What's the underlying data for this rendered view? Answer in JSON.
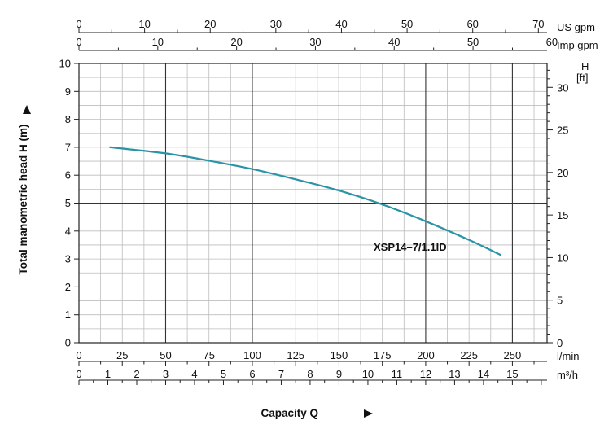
{
  "chart_data": {
    "type": "line",
    "ylabel": "Total manometric head H (m)",
    "xlabel": "Capacity Q",
    "y_unit_right_label": "H",
    "y_unit_right_sub": "[ft]",
    "ylim": [
      0,
      10
    ],
    "y_right_lim": [
      0,
      32.8
    ],
    "xlim_lmin": [
      0,
      270
    ],
    "grid": true,
    "y_ticks": [
      "0",
      "1",
      "2",
      "3",
      "4",
      "5",
      "6",
      "7",
      "8",
      "9",
      "10"
    ],
    "y_right_ticks": [
      {
        "v": 0,
        "label": "0"
      },
      {
        "v": 5,
        "label": "5"
      },
      {
        "v": 10,
        "label": "10"
      },
      {
        "v": 15,
        "label": "15"
      },
      {
        "v": 20,
        "label": "20"
      },
      {
        "v": 25,
        "label": "25"
      },
      {
        "v": 30,
        "label": "30"
      }
    ],
    "x_axes": [
      {
        "name": "US gpm",
        "unit_label": "US gpm",
        "per_lmin": 0.264172,
        "ticks": [
          {
            "v": 0,
            "label": "0"
          },
          {
            "v": 10,
            "label": "10"
          },
          {
            "v": 20,
            "label": "20"
          },
          {
            "v": 30,
            "label": "30"
          },
          {
            "v": 40,
            "label": "40"
          },
          {
            "v": 50,
            "label": "50"
          },
          {
            "v": 60,
            "label": "60"
          },
          {
            "v": 70,
            "label": "70"
          }
        ]
      },
      {
        "name": "Imp gpm",
        "unit_label": "Imp gpm",
        "per_lmin": 0.219969,
        "ticks": [
          {
            "v": 0,
            "label": "0"
          },
          {
            "v": 10,
            "label": "10"
          },
          {
            "v": 20,
            "label": "20"
          },
          {
            "v": 30,
            "label": "30"
          },
          {
            "v": 40,
            "label": "40"
          },
          {
            "v": 50,
            "label": "50"
          },
          {
            "v": 60,
            "label": "60"
          }
        ]
      },
      {
        "name": "l/min",
        "unit_label": "l/min",
        "per_lmin": 1,
        "ticks": [
          {
            "v": 0,
            "label": "0"
          },
          {
            "v": 25,
            "label": "25"
          },
          {
            "v": 50,
            "label": "50"
          },
          {
            "v": 75,
            "label": "75"
          },
          {
            "v": 100,
            "label": "100"
          },
          {
            "v": 125,
            "label": "125"
          },
          {
            "v": 150,
            "label": "150"
          },
          {
            "v": 175,
            "label": "175"
          },
          {
            "v": 200,
            "label": "200"
          },
          {
            "v": 225,
            "label": "225"
          },
          {
            "v": 250,
            "label": "250"
          }
        ]
      },
      {
        "name": "m3/h",
        "unit_label": "m³/h",
        "per_lmin": 0.06,
        "ticks": [
          {
            "v": 0,
            "label": "0"
          },
          {
            "v": 1,
            "label": "1"
          },
          {
            "v": 2,
            "label": "2"
          },
          {
            "v": 3,
            "label": "3"
          },
          {
            "v": 4,
            "label": "4"
          },
          {
            "v": 5,
            "label": "5"
          },
          {
            "v": 6,
            "label": "6"
          },
          {
            "v": 7,
            "label": "7"
          },
          {
            "v": 8,
            "label": "8"
          },
          {
            "v": 9,
            "label": "9"
          },
          {
            "v": 10,
            "label": "10"
          },
          {
            "v": 11,
            "label": "11"
          },
          {
            "v": 12,
            "label": "12"
          },
          {
            "v": 13,
            "label": "13"
          },
          {
            "v": 14,
            "label": "14"
          },
          {
            "v": 15,
            "label": "15"
          }
        ]
      }
    ],
    "series": [
      {
        "name": "XSP14–7/1.1ID",
        "color": "#2a93a6",
        "x_lmin": [
          18,
          50,
          75,
          100,
          125,
          150,
          175,
          200,
          225,
          243
        ],
        "y_m": [
          7.0,
          6.78,
          6.52,
          6.22,
          5.85,
          5.45,
          4.95,
          4.35,
          3.68,
          3.15
        ]
      }
    ]
  }
}
